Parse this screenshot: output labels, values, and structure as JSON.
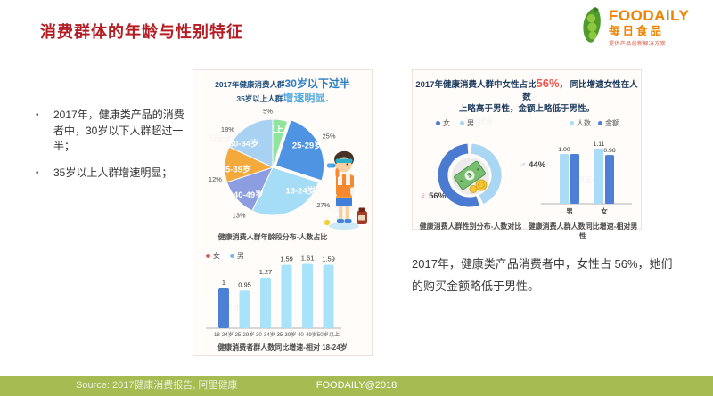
{
  "slide": {
    "title": "消费群体的年龄与性别特征"
  },
  "logo": {
    "word_pre": "FOODA",
    "word_i": "i",
    "word_post": "LY",
    "subtitle": "每日食品",
    "tagline": "提供产品创新解决方案",
    "tagline_dots": "····",
    "orange": "#ef8200",
    "green": "#6ba43a"
  },
  "icons": {
    "bullet": "•",
    "female_symbol": "♀",
    "male_symbol": "♂"
  },
  "bullets": [
    {
      "text": "2017年，健康类产品的消费者中，30岁以下人群超过一半；"
    },
    {
      "text": "35岁以上人群增速明显；"
    }
  ],
  "middle": {
    "title": {
      "s1": "2017年健康消费人群",
      "b1": "30岁以下过半",
      "s2": "35岁以上人群",
      "b2": "增速明显."
    }
  },
  "right": {
    "title": {
      "p1": "2017年健康消费人群中女性占比",
      "pct": "56%",
      "p2": "， 同比增速女性在人数",
      "line2": "上略高于男性，金额上略低于男性。"
    }
  },
  "conclusion": {
    "text": "2017年，健康类产品消费者中，女性占 56%，她们的购买金额略低于男性。"
  },
  "footer": {
    "source": "Source: 2017健康消费报告, 阿里健康",
    "copyright": "FOODAILY@2018"
  },
  "watermark": "阿里健康",
  "chart_data": [
    {
      "id": "age-pie",
      "type": "pie",
      "title": "2017年健康消费人群30岁以下过半 35岁以上人群增速明显。",
      "caption": "健康消费人群年龄段分布-人数占比",
      "segments": [
        {
          "label": "50以上",
          "value": 5,
          "pct_label": "5%",
          "color": "#8fe59b"
        },
        {
          "label": "25-29岁",
          "value": 25,
          "pct_label": "25%",
          "color": "#4f93e3",
          "explode": 4
        },
        {
          "label": "18-24岁",
          "value": 27,
          "pct_label": "27%",
          "color": "#a5dcf6"
        },
        {
          "label": "40-49岁",
          "value": 13,
          "pct_label": "13%",
          "color": "#8c9de0"
        },
        {
          "label": "35-39岁",
          "value": 12,
          "pct_label": "12%",
          "color": "#f4a93c"
        },
        {
          "label": "30-34岁",
          "value": 18,
          "pct_label": "18%",
          "color": "#a9d2f2"
        }
      ]
    },
    {
      "id": "age-growth-bars",
      "type": "bar",
      "legend": [
        {
          "label": "女",
          "color": "#dd5c57"
        },
        {
          "label": "男",
          "color": "#79b8ea"
        }
      ],
      "categories": [
        "18-24岁",
        "25-29岁",
        "30-34岁",
        "35-39岁",
        "40-49岁",
        "50岁以上"
      ],
      "values": [
        1,
        0.95,
        1.27,
        1.59,
        1.61,
        1.59
      ],
      "value_labels": [
        "1",
        "0.95",
        "1.27",
        "1.59",
        "1.61",
        "1.59"
      ],
      "bar_colors": [
        "#4d7fd6",
        "#a9e3f9",
        "#a9e3f9",
        "#a9e3f9",
        "#a9e3f9",
        "#a9e3f9"
      ],
      "caption": "健康消费者群人数同比增速-相对 18-24岁",
      "ylim": [
        0,
        1.8
      ]
    },
    {
      "id": "gender-donut",
      "type": "pie",
      "legend": [
        {
          "label": "女",
          "color": "#4a7bd0"
        },
        {
          "label": "男",
          "color": "#a8d6f3"
        }
      ],
      "segments": [
        {
          "label": "男",
          "value": 44,
          "pct_label": "44%",
          "color": "#a8d6f3"
        },
        {
          "label": "女",
          "value": 56,
          "pct_label": "56%",
          "color": "#4a7bd0"
        }
      ],
      "caption": "健康消费人群性别分布-人数对比"
    },
    {
      "id": "gender-growth-bars",
      "type": "bar",
      "legend": [
        {
          "label": "人数",
          "color": "#aadcf8"
        },
        {
          "label": "金额",
          "color": "#4d7fd6"
        }
      ],
      "categories": [
        "男",
        "女"
      ],
      "series": [
        {
          "name": "人数",
          "color": "#aadcf8",
          "values": [
            1.0,
            1.11
          ],
          "value_labels": [
            "1.00",
            "1.11"
          ]
        },
        {
          "name": "金额",
          "color": "#4d7fd6",
          "values": [
            1.0,
            0.98
          ],
          "value_labels": [
            "",
            "0.98"
          ]
        }
      ],
      "caption": "健康消费人群人数同比增速-相对男性",
      "ylim": [
        0,
        1.3
      ]
    }
  ]
}
